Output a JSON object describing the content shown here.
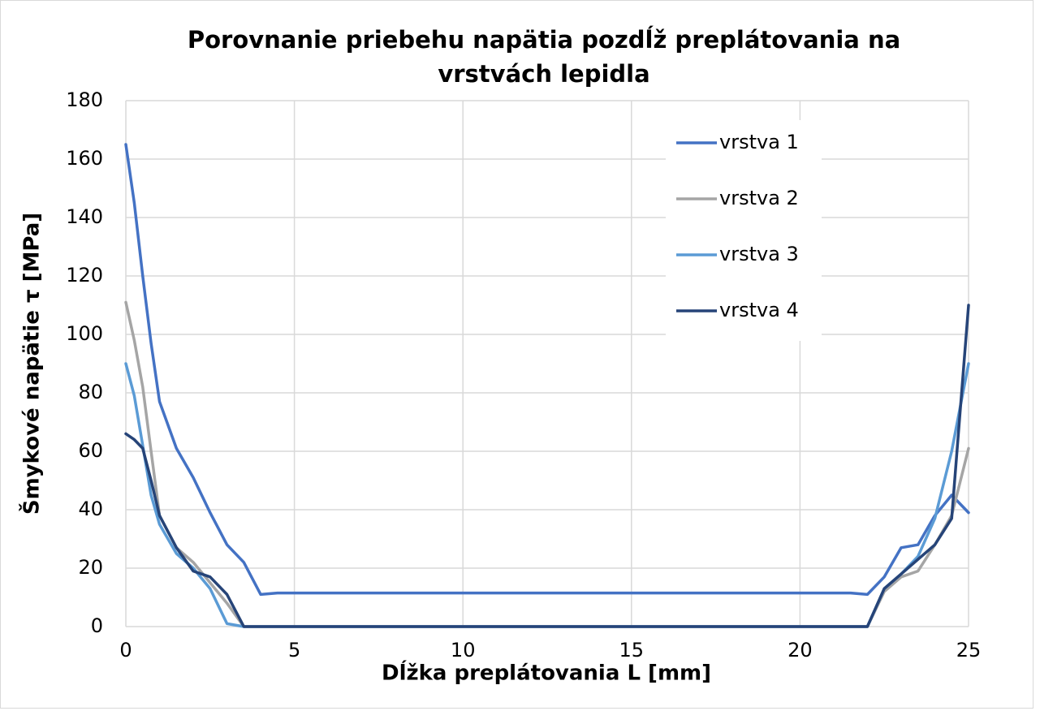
{
  "chart_data": {
    "type": "line",
    "title": "Porovnanie priebehu napätia pozdĺž preplátovania na vrstvách lepidla",
    "x_label": "Dĺžka preplátovania L [mm]",
    "y_label": "Šmykové napätie τ [MPa]",
    "x": [
      0,
      0.25,
      0.5,
      0.75,
      1,
      1.5,
      2,
      2.5,
      3,
      3.5,
      4,
      4.5,
      5,
      10,
      15,
      20,
      21.5,
      22,
      22.5,
      23,
      23.5,
      24,
      24.5,
      25
    ],
    "series": [
      {
        "name": "vrstva 1",
        "color": "#4472c4",
        "values": [
          165,
          145,
          120,
          97,
          77,
          61,
          51,
          39,
          28,
          22,
          11,
          11.5,
          11.5,
          11.5,
          11.5,
          11.5,
          11.5,
          11,
          17,
          27,
          28,
          38,
          45,
          39
        ]
      },
      {
        "name": "vrstva 2",
        "color": "#a5a5a5",
        "values": [
          111,
          98,
          82,
          60,
          38,
          27,
          22,
          15,
          8,
          0,
          0,
          0,
          0,
          0,
          0,
          0,
          0,
          0,
          12,
          17,
          19,
          28,
          38,
          61
        ]
      },
      {
        "name": "vrstva 3",
        "color": "#5b9bd5",
        "values": [
          90,
          79,
          62,
          45,
          35,
          25,
          20,
          13,
          1,
          0,
          0,
          0,
          0,
          0,
          0,
          0,
          0,
          0,
          13,
          18,
          24,
          37,
          60,
          90
        ]
      },
      {
        "name": "vrstva 4",
        "color": "#264478",
        "values": [
          66,
          64,
          61,
          50,
          38,
          27,
          19,
          17,
          11,
          0,
          0,
          0,
          0,
          0,
          0,
          0,
          0,
          0,
          13,
          18,
          23,
          28,
          37,
          110
        ]
      }
    ],
    "xlim": [
      0,
      25
    ],
    "xticks": [
      0,
      5,
      10,
      15,
      20,
      25
    ],
    "ylim": [
      0,
      180
    ],
    "yticks": [
      0,
      20,
      40,
      60,
      80,
      100,
      120,
      140,
      160,
      180
    ],
    "grid": true,
    "legend": "upper right"
  }
}
